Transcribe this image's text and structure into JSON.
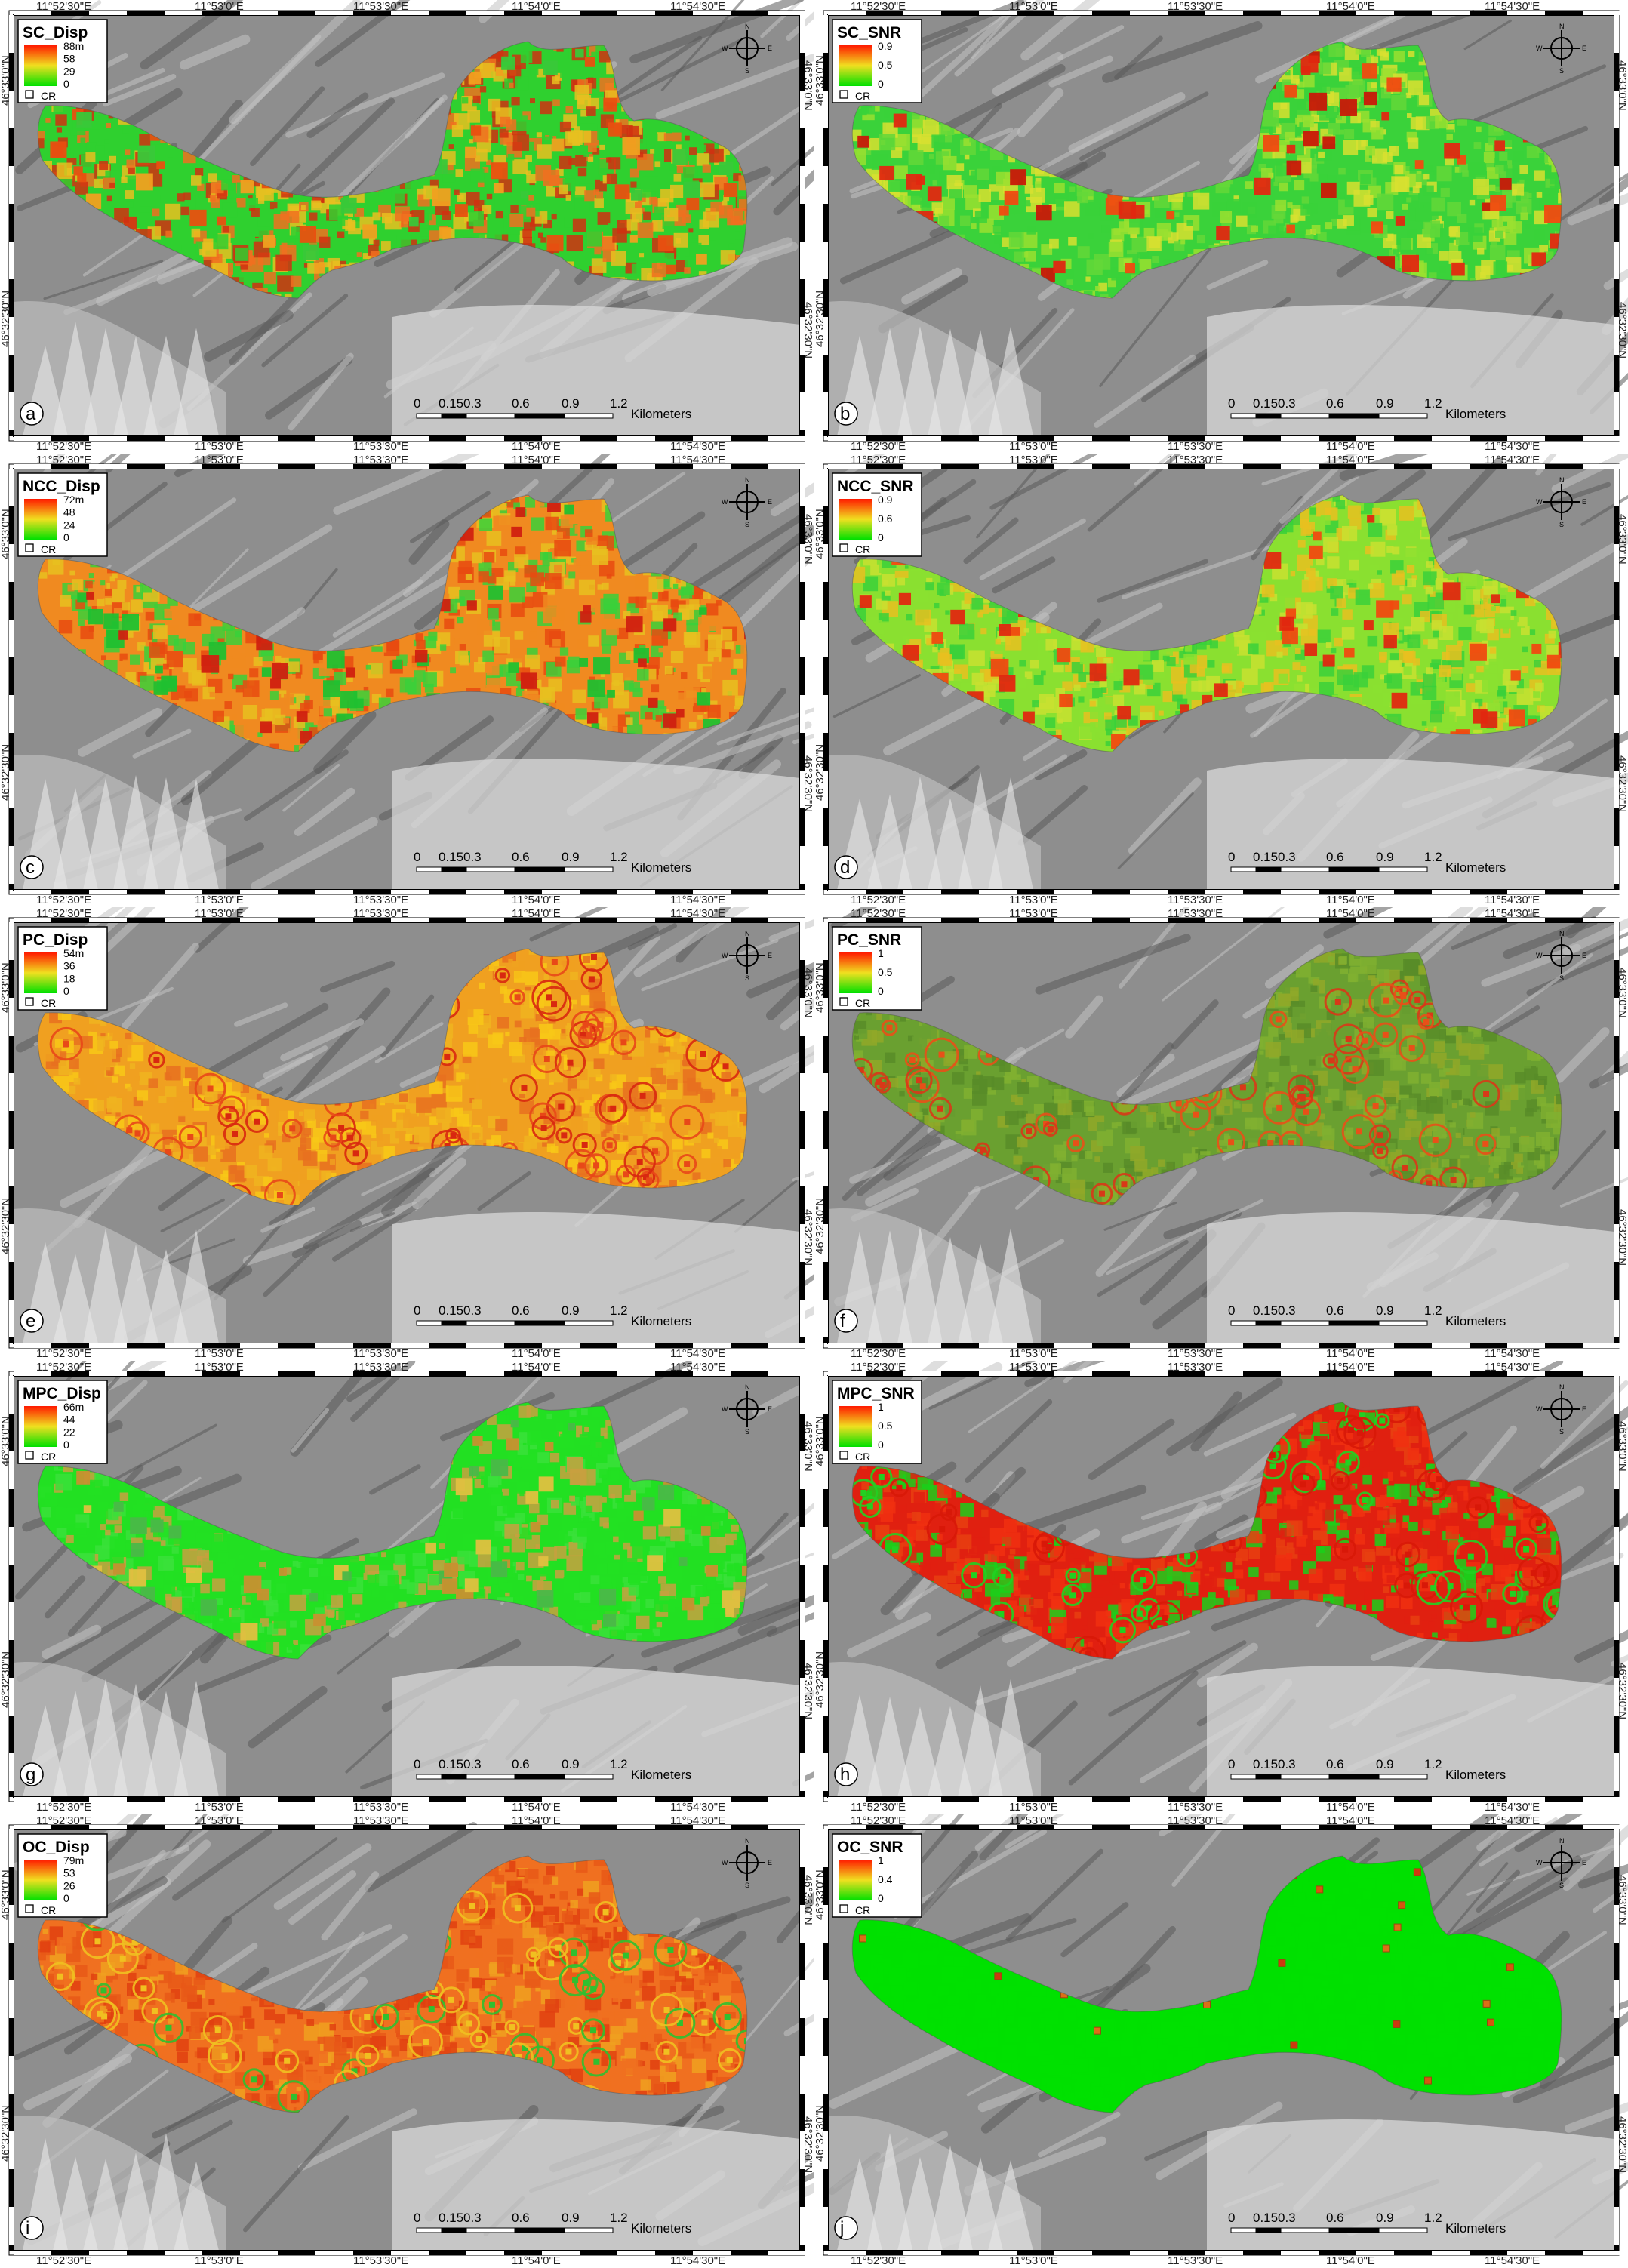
{
  "lon_ticks": [
    "11°52'30\"E",
    "11°53'0\"E",
    "11°53'30\"E",
    "11°54'0\"E",
    "11°54'30\"E"
  ],
  "lat_ticks": [
    "46°33'0\"N",
    "46°32'30\"N"
  ],
  "scale_bar": {
    "ticks": [
      "0",
      "0.15",
      "0.3",
      "0.6",
      "0.9",
      "1.2"
    ],
    "unit": "Kilometers"
  },
  "compass": {
    "n": "N",
    "s": "S",
    "e": "E",
    "w": "W"
  },
  "colors": {
    "low": "#00e000",
    "mid": "#f0e020",
    "high": "#ff1a00",
    "hillshade": "#8a8a8a"
  },
  "panels": [
    {
      "label": "a",
      "legend_title": "SC_Disp",
      "legend_values": [
        "88m",
        "58",
        "29",
        "0"
      ],
      "cr_label": "CR",
      "pattern": "mixed-speckle"
    },
    {
      "label": "b",
      "legend_title": "SC_SNR",
      "legend_values": [
        "0.9",
        "0.5",
        "0"
      ],
      "cr_label": "CR",
      "pattern": "green-squares"
    },
    {
      "label": "c",
      "legend_title": "NCC_Disp",
      "legend_values": [
        "72m",
        "48",
        "24",
        "0"
      ],
      "cr_label": "CR",
      "pattern": "orange-speckle"
    },
    {
      "label": "d",
      "legend_title": "NCC_SNR",
      "legend_values": [
        "0.9",
        "0.6",
        "0"
      ],
      "cr_label": "CR",
      "pattern": "green-yellow"
    },
    {
      "label": "e",
      "legend_title": "PC_Disp",
      "legend_values": [
        "54m",
        "36",
        "18",
        "0"
      ],
      "cr_label": "CR",
      "pattern": "yellow-rings"
    },
    {
      "label": "f",
      "legend_title": "PC_SNR",
      "legend_values": [
        "1",
        "0.5",
        "0"
      ],
      "cr_label": "CR",
      "pattern": "olive-rings"
    },
    {
      "label": "g",
      "legend_title": "MPC_Disp",
      "legend_values": [
        "66m",
        "44",
        "22",
        "0"
      ],
      "cr_label": "CR",
      "pattern": "green-patches"
    },
    {
      "label": "h",
      "legend_title": "MPC_SNR",
      "legend_values": [
        "1",
        "0.5",
        "0"
      ],
      "cr_label": "CR",
      "pattern": "red-noise"
    },
    {
      "label": "i",
      "legend_title": "OC_Disp",
      "legend_values": [
        "79m",
        "53",
        "26",
        "0"
      ],
      "cr_label": "CR",
      "pattern": "orange-rings"
    },
    {
      "label": "j",
      "legend_title": "OC_SNR",
      "legend_values": [
        "1",
        "0.4",
        "0"
      ],
      "cr_label": "CR",
      "pattern": "green-sparse"
    }
  ]
}
